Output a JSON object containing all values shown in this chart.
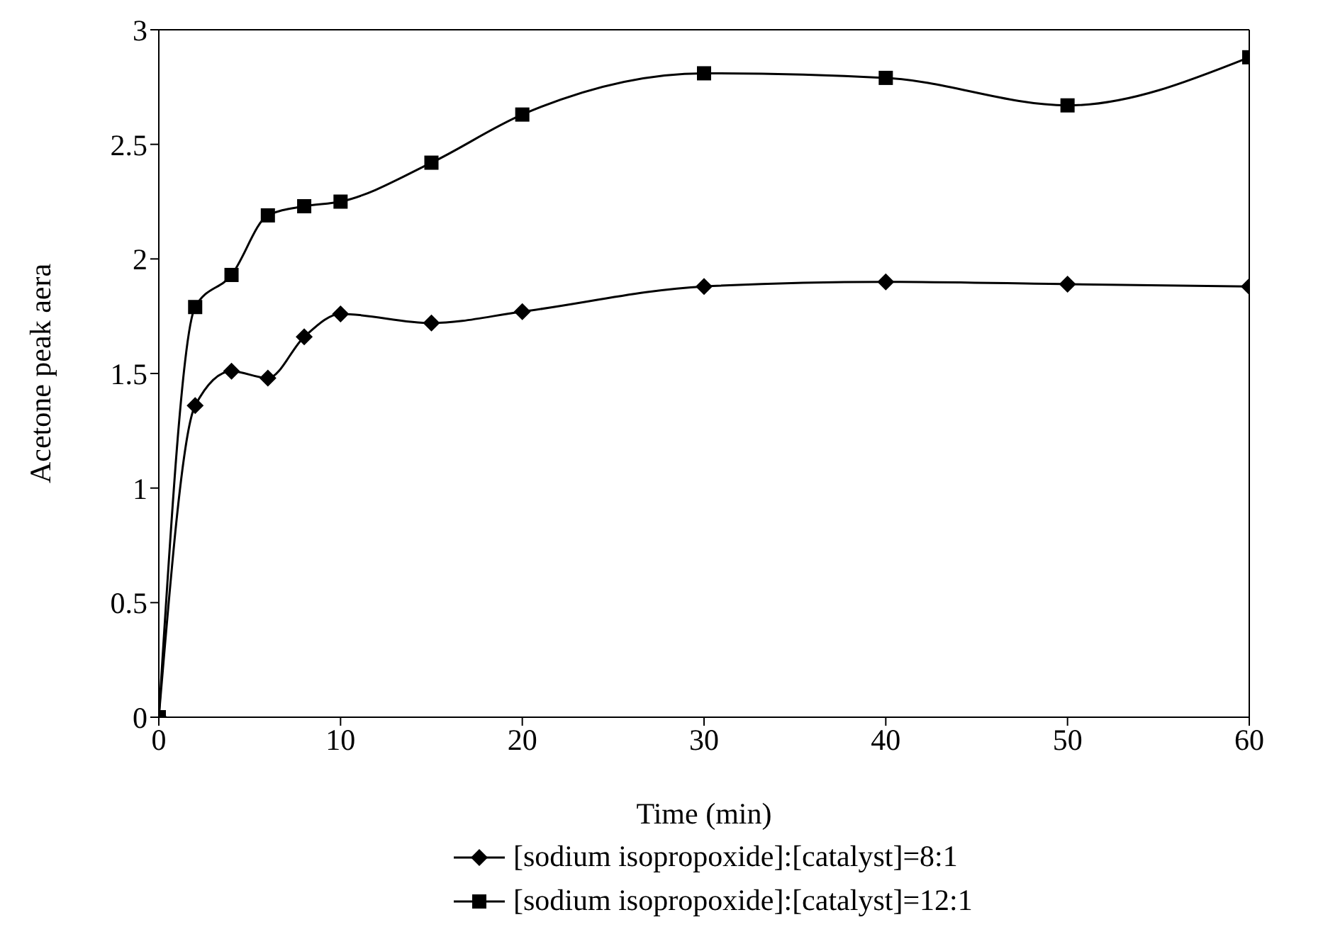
{
  "chart_data": {
    "type": "line",
    "xlabel": "Time (min)",
    "ylabel": "Acetone peak aera",
    "x": [
      0,
      2,
      4,
      6,
      8,
      10,
      15,
      20,
      30,
      40,
      50,
      60
    ],
    "series": [
      {
        "name": "[sodium isopropoxide]:[catalyst]=8:1",
        "color": "#000000",
        "marker": "diamond",
        "values": [
          0,
          1.36,
          1.51,
          1.48,
          1.66,
          1.76,
          1.72,
          1.77,
          1.88,
          1.9,
          1.89,
          1.88
        ]
      },
      {
        "name": "[sodium isopropoxide]:[catalyst]=12:1",
        "color": "#000000",
        "marker": "square",
        "values": [
          0,
          1.79,
          1.93,
          2.19,
          2.23,
          2.25,
          2.42,
          2.63,
          2.81,
          2.79,
          2.67,
          2.88
        ]
      }
    ],
    "xlim": [
      0,
      60
    ],
    "xticks": [
      0,
      10,
      20,
      30,
      40,
      50,
      60
    ],
    "ylim": [
      0,
      3
    ],
    "yticks": [
      0,
      0.5,
      1,
      1.5,
      2,
      2.5,
      3
    ],
    "grid": false,
    "legend": "bottom",
    "line_style": "solid"
  }
}
